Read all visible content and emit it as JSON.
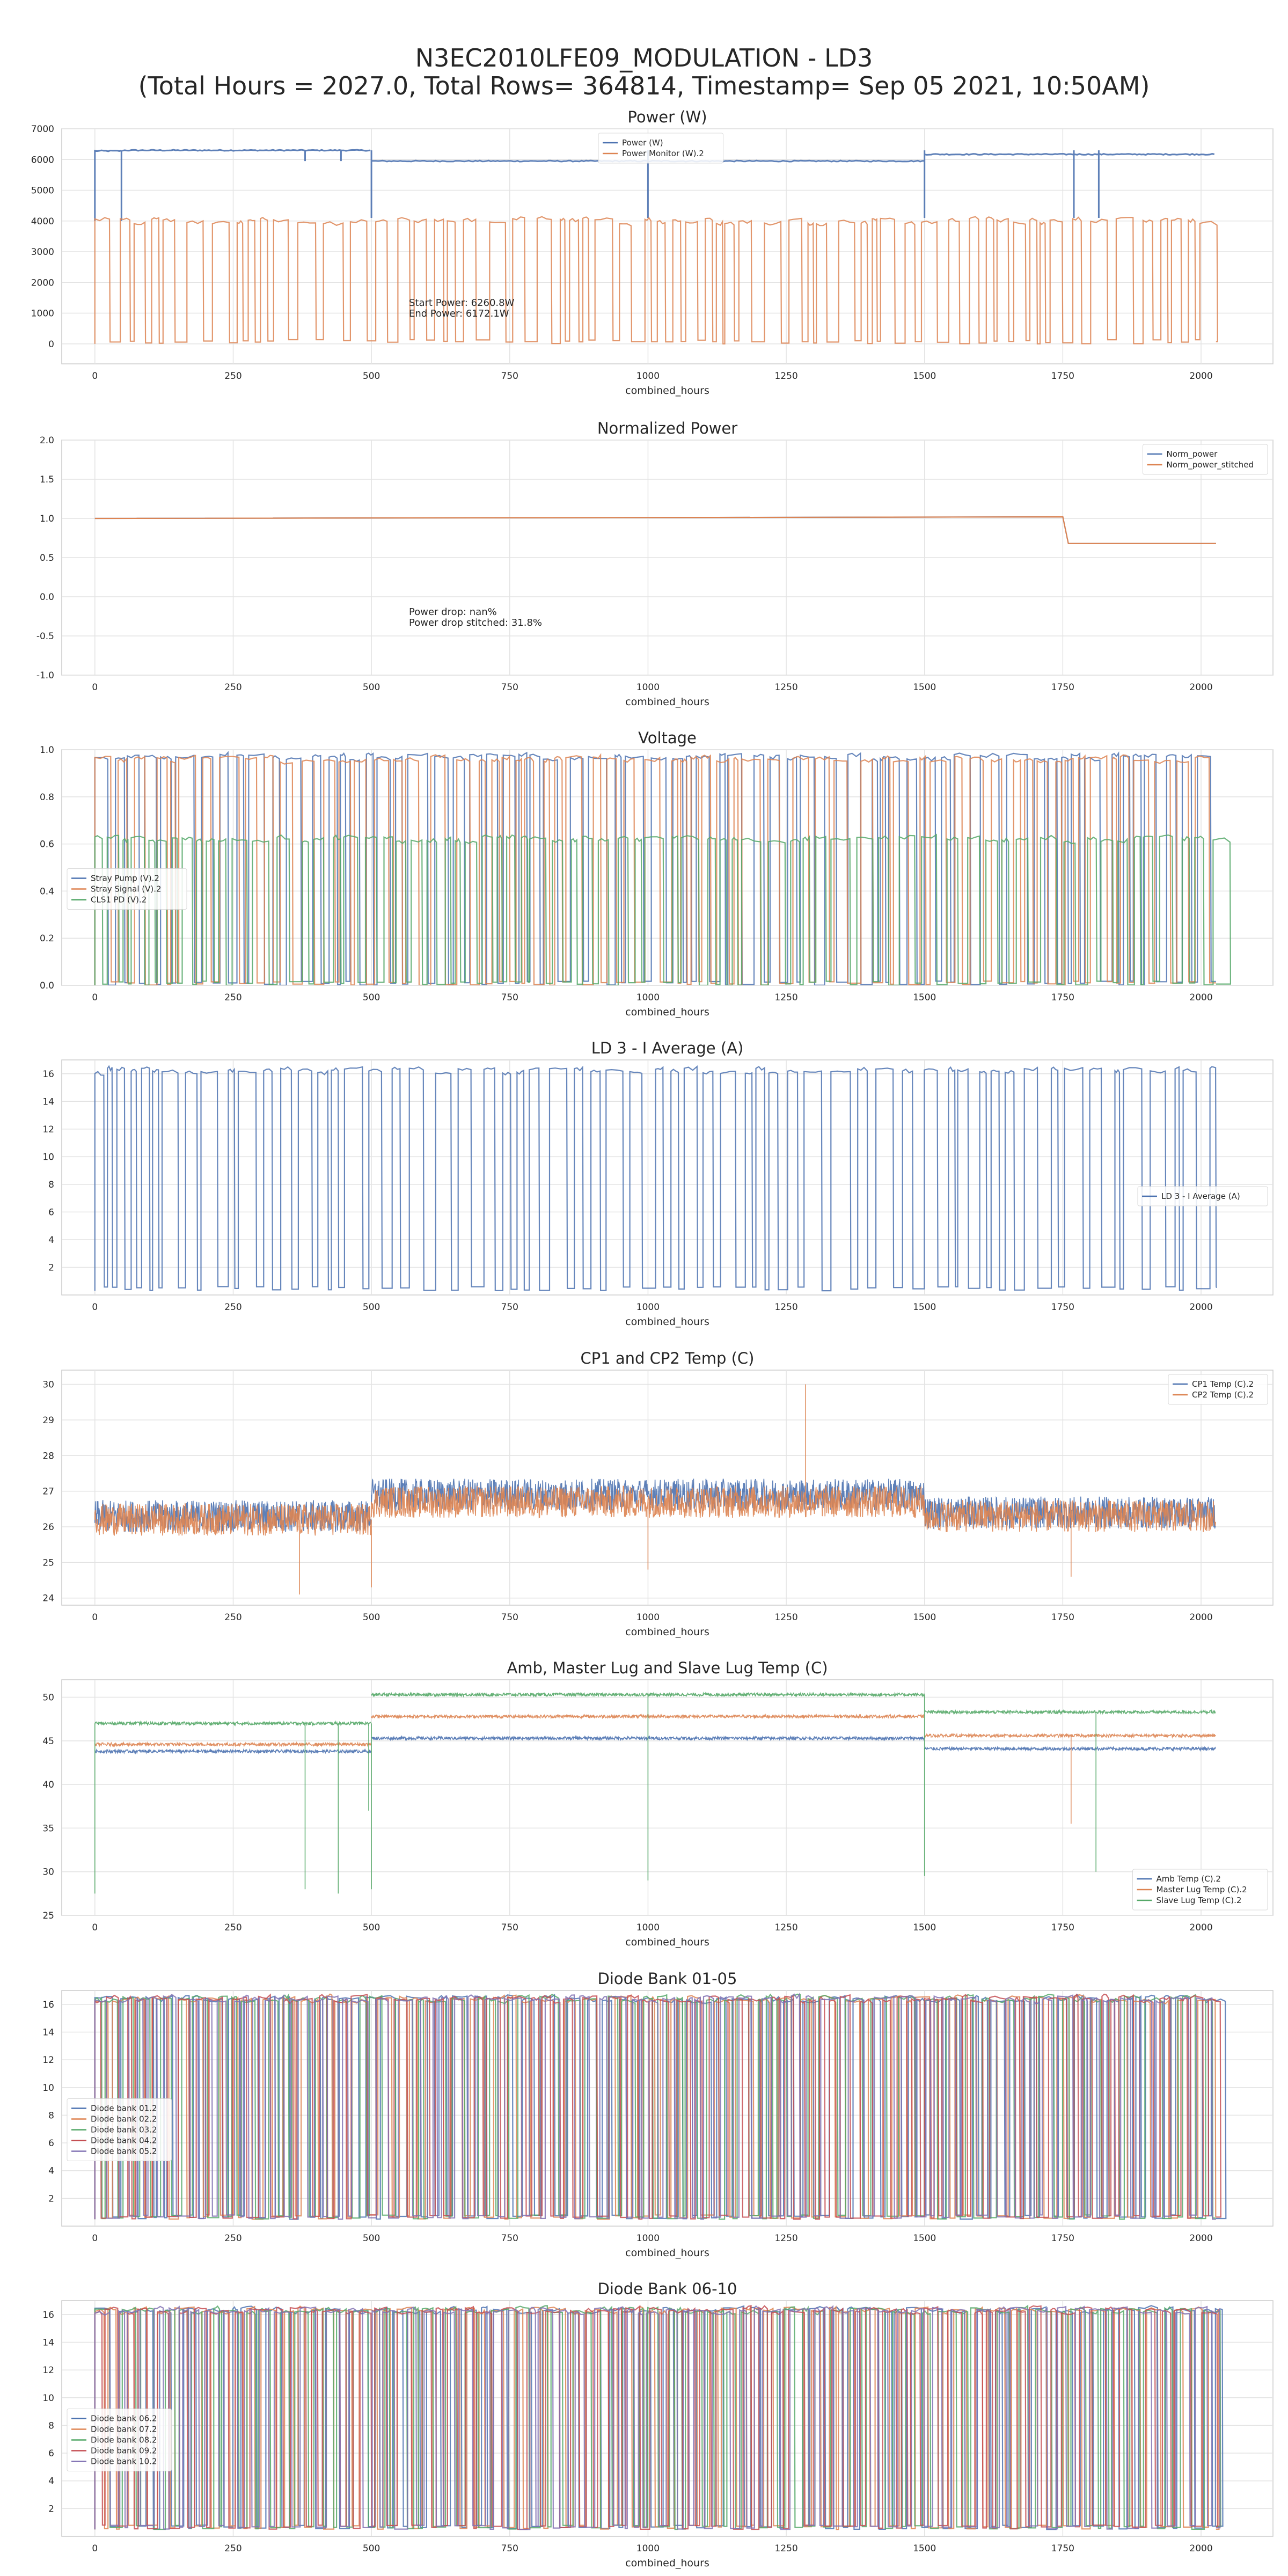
{
  "figure": {
    "title_line1": "N3EC2010LFE09_MODULATION - LD3",
    "title_line2": "(Total Hours = 2027.0, Total Rows= 364814, Timestamp= Sep 05 2021, 10:50AM)"
  },
  "chart_data": [
    {
      "type": "line",
      "title": "Power (W)",
      "xlabel": "combined_hours",
      "ylabel": "",
      "xlim": [
        -60,
        2130
      ],
      "ylim": [
        -650,
        7000
      ],
      "xticks": [
        0,
        250,
        500,
        750,
        1000,
        1250,
        1500,
        1750,
        2000
      ],
      "yticks": [
        0,
        1000,
        2000,
        3000,
        4000,
        5000,
        6000,
        7000
      ],
      "legend_position": "upper-center",
      "annotations": [
        "Start Power: 6260.8W",
        "End Power: 6172.1W"
      ],
      "series": [
        {
          "name": "Power (W)",
          "color": "#4c72b0",
          "pattern": "steps",
          "segments": [
            [
              0,
              50,
              6280
            ],
            [
              50,
              500,
              6300
            ],
            [
              500,
              1500,
              5950
            ],
            [
              1500,
              2027,
              6170
            ]
          ],
          "dips": [
            [
              0,
              4000
            ],
            [
              48,
              4000
            ],
            [
              380,
              5950
            ],
            [
              445,
              5950
            ],
            [
              500,
              4100
            ],
            [
              1000,
              4100
            ],
            [
              1500,
              4100
            ],
            [
              1770,
              4100
            ],
            [
              1815,
              4100
            ]
          ]
        },
        {
          "name": "Power Monitor (W).2",
          "color": "#dd8452",
          "pattern": "switching",
          "on": 4000,
          "off": 0,
          "period": 40
        }
      ]
    },
    {
      "type": "line",
      "title": "Normalized Power",
      "xlabel": "combined_hours",
      "ylabel": "",
      "xlim": [
        -60,
        2130
      ],
      "ylim": [
        -1.0,
        2.0
      ],
      "xticks": [
        0,
        250,
        500,
        750,
        1000,
        1250,
        1500,
        1750,
        2000
      ],
      "yticks": [
        -1.0,
        -0.5,
        0.0,
        0.5,
        1.0,
        1.5,
        2.0
      ],
      "legend_position": "upper-right",
      "annotations": [
        "Power drop: nan%",
        "Power drop stitched: 31.8%"
      ],
      "series": [
        {
          "name": "Norm_power",
          "color": "#4c72b0",
          "points": [
            [
              0,
              1.0
            ],
            [
              1750,
              1.02
            ],
            [
              1760,
              0.68
            ],
            [
              2027,
              0.68
            ]
          ]
        },
        {
          "name": "Norm_power_stitched",
          "color": "#dd8452",
          "points": [
            [
              0,
              1.0
            ],
            [
              1750,
              1.02
            ],
            [
              1760,
              0.68
            ],
            [
              2027,
              0.68
            ]
          ]
        }
      ]
    },
    {
      "type": "line",
      "title": "Voltage",
      "xlabel": "combined_hours",
      "ylabel": "",
      "xlim": [
        -60,
        2130
      ],
      "ylim": [
        0.0,
        1.0
      ],
      "xticks": [
        0,
        250,
        500,
        750,
        1000,
        1250,
        1500,
        1750,
        2000
      ],
      "yticks": [
        0.0,
        0.2,
        0.4,
        0.6,
        0.8,
        1.0
      ],
      "legend_position": "center-left",
      "series": [
        {
          "name": "Stray Pump (V).2",
          "color": "#4c72b0",
          "pattern": "switching",
          "on": 0.97,
          "off": 0.0,
          "period": 40
        },
        {
          "name": "Stray Signal (V).2",
          "color": "#dd8452",
          "pattern": "switching",
          "on": 0.96,
          "off": 0.0,
          "period": 40
        },
        {
          "name": "CLS1 PD (V).2",
          "color": "#55a868",
          "pattern": "switching",
          "on": 0.62,
          "off": 0.0,
          "period": 40
        }
      ]
    },
    {
      "type": "line",
      "title": "LD 3 - I Average (A)",
      "xlabel": "combined_hours",
      "ylabel": "",
      "xlim": [
        -60,
        2130
      ],
      "ylim": [
        0,
        17
      ],
      "xticks": [
        0,
        250,
        500,
        750,
        1000,
        1250,
        1500,
        1750,
        2000
      ],
      "yticks": [
        2,
        4,
        6,
        8,
        10,
        12,
        14,
        16
      ],
      "legend_position": "center-right",
      "series": [
        {
          "name": "LD 3 - I Average (A)",
          "color": "#4c72b0",
          "pattern": "switching",
          "on": 16.2,
          "off": 0.3,
          "period": 40
        }
      ]
    },
    {
      "type": "line",
      "title": "CP1 and CP2 Temp (C)",
      "xlabel": "combined_hours",
      "ylabel": "",
      "xlim": [
        -60,
        2130
      ],
      "ylim": [
        23.8,
        30.4
      ],
      "xticks": [
        0,
        250,
        500,
        750,
        1000,
        1250,
        1500,
        1750,
        2000
      ],
      "yticks": [
        24,
        25,
        26,
        27,
        28,
        29,
        30
      ],
      "legend_position": "upper-right",
      "series": [
        {
          "name": "CP1 Temp (C).2",
          "color": "#4c72b0",
          "levels": [
            [
              0,
              500,
              26.3
            ],
            [
              500,
              1500,
              26.9
            ],
            [
              1500,
              2027,
              26.4
            ]
          ]
        },
        {
          "name": "CP2 Temp (C).2",
          "color": "#dd8452",
          "levels": [
            [
              0,
              500,
              26.2
            ],
            [
              500,
              1500,
              26.7
            ],
            [
              1500,
              2027,
              26.3
            ]
          ],
          "spikes": [
            [
              1285,
              30.0
            ],
            [
              370,
              24.1
            ],
            [
              500,
              24.3
            ],
            [
              1000,
              24.8
            ],
            [
              1765,
              24.6
            ]
          ]
        }
      ]
    },
    {
      "type": "line",
      "title": "Amb, Master Lug and Slave Lug Temp (C)",
      "xlabel": "combined_hours",
      "ylabel": "",
      "xlim": [
        -60,
        2130
      ],
      "ylim": [
        25,
        52
      ],
      "xticks": [
        0,
        250,
        500,
        750,
        1000,
        1250,
        1500,
        1750,
        2000
      ],
      "yticks": [
        25,
        30,
        35,
        40,
        45,
        50
      ],
      "legend_position": "lower-right",
      "series": [
        {
          "name": "Amb Temp (C).2",
          "color": "#4c72b0",
          "levels": [
            [
              0,
              500,
              43.8
            ],
            [
              500,
              1500,
              45.3
            ],
            [
              1500,
              2027,
              44.1
            ]
          ]
        },
        {
          "name": "Master Lug Temp (C).2",
          "color": "#dd8452",
          "levels": [
            [
              0,
              500,
              44.6
            ],
            [
              500,
              1500,
              47.8
            ],
            [
              1500,
              2027,
              45.6
            ]
          ],
          "spikes": [
            [
              1765,
              35.5
            ]
          ]
        },
        {
          "name": "Slave Lug Temp (C).2",
          "color": "#55a868",
          "levels": [
            [
              0,
              500,
              47.0
            ],
            [
              500,
              1500,
              50.3
            ],
            [
              1500,
              2027,
              48.3
            ]
          ],
          "spikes": [
            [
              0,
              27.5
            ],
            [
              380,
              28.0
            ],
            [
              440,
              27.5
            ],
            [
              495,
              37.0
            ],
            [
              500,
              28.0
            ],
            [
              1000,
              29.0
            ],
            [
              1500,
              29.5
            ],
            [
              1810,
              30.0
            ]
          ]
        }
      ]
    },
    {
      "type": "line",
      "title": "Diode Bank 01-05",
      "xlabel": "combined_hours",
      "ylabel": "",
      "xlim": [
        -60,
        2130
      ],
      "ylim": [
        0,
        17
      ],
      "xticks": [
        0,
        250,
        500,
        750,
        1000,
        1250,
        1500,
        1750,
        2000
      ],
      "yticks": [
        2,
        4,
        6,
        8,
        10,
        12,
        14,
        16
      ],
      "legend_position": "center-left",
      "series": [
        {
          "name": "Diode bank 01.2",
          "color": "#4c72b0",
          "pattern": "switching",
          "on": 16.4,
          "off": 0.5,
          "period": 40
        },
        {
          "name": "Diode bank 02.2",
          "color": "#dd8452",
          "pattern": "switching",
          "on": 16.4,
          "off": 0.5,
          "period": 40
        },
        {
          "name": "Diode bank 03.2",
          "color": "#55a868",
          "pattern": "switching",
          "on": 16.4,
          "off": 0.5,
          "period": 40
        },
        {
          "name": "Diode bank 04.2",
          "color": "#c44e52",
          "pattern": "switching",
          "on": 16.4,
          "off": 0.5,
          "period": 40
        },
        {
          "name": "Diode bank 05.2",
          "color": "#8172b3",
          "pattern": "switching",
          "on": 16.4,
          "off": 0.5,
          "period": 40
        }
      ]
    },
    {
      "type": "line",
      "title": "Diode Bank 06-10",
      "xlabel": "combined_hours",
      "ylabel": "",
      "xlim": [
        -60,
        2130
      ],
      "ylim": [
        0,
        17
      ],
      "xticks": [
        0,
        250,
        500,
        750,
        1000,
        1250,
        1500,
        1750,
        2000
      ],
      "yticks": [
        2,
        4,
        6,
        8,
        10,
        12,
        14,
        16
      ],
      "legend_position": "center-left",
      "series": [
        {
          "name": "Diode bank 06.2",
          "color": "#4c72b0",
          "pattern": "switching",
          "on": 16.3,
          "off": 0.5,
          "period": 40
        },
        {
          "name": "Diode bank 07.2",
          "color": "#dd8452",
          "pattern": "switching",
          "on": 16.3,
          "off": 0.5,
          "period": 40
        },
        {
          "name": "Diode bank 08.2",
          "color": "#55a868",
          "pattern": "switching",
          "on": 16.3,
          "off": 0.5,
          "period": 40
        },
        {
          "name": "Diode bank 09.2",
          "color": "#c44e52",
          "pattern": "switching",
          "on": 16.3,
          "off": 0.5,
          "period": 40
        },
        {
          "name": "Diode bank 10.2",
          "color": "#8172b3",
          "pattern": "switching",
          "on": 16.3,
          "off": 0.5,
          "period": 40
        }
      ]
    }
  ]
}
